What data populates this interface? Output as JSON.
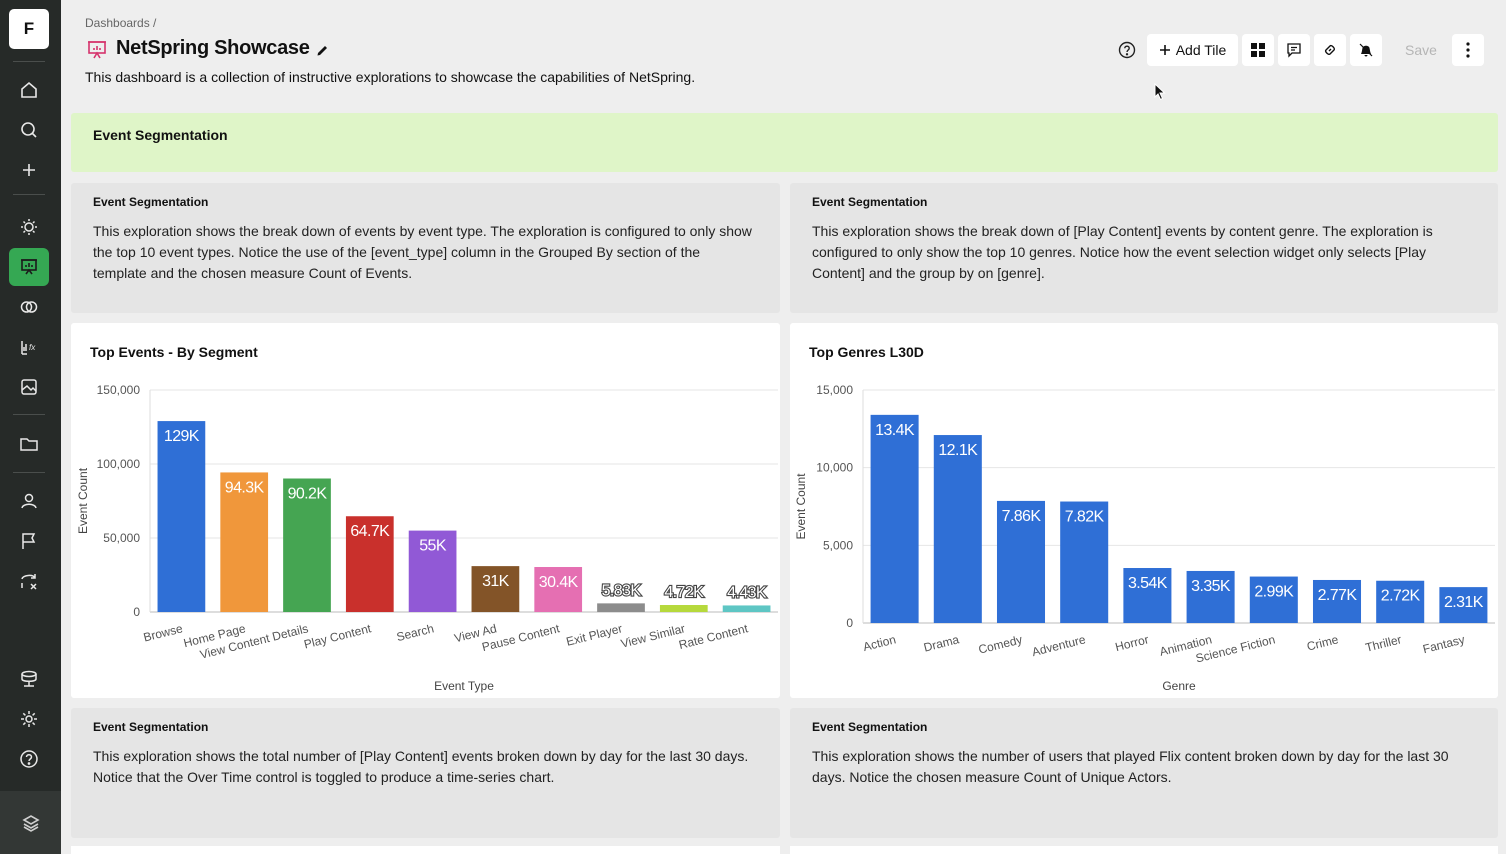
{
  "app": {
    "logo_letter": "F"
  },
  "sidebar": {
    "items": [
      {
        "icon": "home-icon"
      },
      {
        "icon": "search-icon"
      },
      {
        "icon": "plus-icon"
      },
      {
        "icon": "lightbulb-icon"
      },
      {
        "icon": "dashboard-icon",
        "active": true
      },
      {
        "icon": "segments-icon"
      },
      {
        "icon": "metrics-icon"
      },
      {
        "icon": "image-icon"
      },
      {
        "icon": "folder-icon"
      },
      {
        "icon": "user-icon"
      },
      {
        "icon": "flag-icon"
      },
      {
        "icon": "experiment-icon"
      },
      {
        "icon": "database-icon"
      },
      {
        "icon": "gear-icon"
      },
      {
        "icon": "help-icon"
      }
    ],
    "bottom_icon": "stack-logo-icon"
  },
  "header": {
    "breadcrumb": "Dashboards  /",
    "title": "NetSpring Showcase",
    "description": "This dashboard is a collection of instructive explorations to showcase the capabilities of NetSpring.",
    "add_tile_label": "Add Tile",
    "save_label": "Save"
  },
  "banner": {
    "title": "Event Segmentation"
  },
  "text_tiles": [
    {
      "heading": "Event Segmentation",
      "lines": [
        "This exploration shows the break down of events by event type. The exploration is configured to only show",
        "the top 10 event types. Notice the use of the [event_type] column in the Grouped By section of the",
        "template and the chosen measure Count of Events."
      ]
    },
    {
      "heading": "Event Segmentation",
      "lines": [
        "This exploration shows the break down of [Play Content] events by content genre. The exploration is",
        "configured to only show the top 10 genres. Notice how the event selection widget only selects [Play",
        "Content] and the group by on [genre]."
      ]
    },
    {
      "heading": "Event Segmentation",
      "lines": [
        "This exploration shows the total number of [Play Content] events broken down by day for the last 30 days.",
        "Notice that the Over Time control is toggled to produce a time-series chart."
      ]
    },
    {
      "heading": "Event Segmentation",
      "lines": [
        "This exploration shows the number of users that played Flix content broken down by day for the last 30",
        "days. Notice the chosen measure Count of Unique Actors."
      ]
    }
  ],
  "chart_data": [
    {
      "type": "bar",
      "title": "Top Events - By Segment",
      "xlabel": "Event Type",
      "ylabel": "Event Count",
      "ylim": [
        0,
        150000
      ],
      "yticks": [
        "0",
        "50,000",
        "100,000",
        "150,000"
      ],
      "grid": true,
      "categories": [
        "Browse",
        "Home Page",
        "View Content Details",
        "Play Content",
        "Search",
        "View Ad",
        "Pause Content",
        "Exit Player",
        "View Similar",
        "Rate Content"
      ],
      "values": [
        129000,
        94300,
        90200,
        64700,
        55000,
        31000,
        30400,
        5830,
        4720,
        4430
      ],
      "data_labels": [
        "129K",
        "94.3K",
        "90.2K",
        "64.7K",
        "55K",
        "31K",
        "30.4K",
        "5.83K",
        "4.72K",
        "4.43K"
      ],
      "colors": [
        "#2f6fd6",
        "#f0973b",
        "#45a552",
        "#c9302c",
        "#9159d6",
        "#835428",
        "#e56fb2",
        "#8c8c8c",
        "#b6d93c",
        "#5ec6c4"
      ]
    },
    {
      "type": "bar",
      "title": "Top Genres L30D",
      "xlabel": "Genre",
      "ylabel": "Event Count",
      "ylim": [
        0,
        15000
      ],
      "yticks": [
        "0",
        "5,000",
        "10,000",
        "15,000"
      ],
      "grid": true,
      "categories": [
        "Action",
        "Drama",
        "Comedy",
        "Adventure",
        "Horror",
        "Animation",
        "Science Fiction",
        "Crime",
        "Thriller",
        "Fantasy"
      ],
      "values": [
        13400,
        12100,
        7860,
        7820,
        3540,
        3350,
        2990,
        2770,
        2720,
        2310
      ],
      "data_labels": [
        "13.4K",
        "12.1K",
        "7.86K",
        "7.82K",
        "3.54K",
        "3.35K",
        "2.99K",
        "2.77K",
        "2.72K",
        "2.31K"
      ],
      "colors": [
        "#2f6fd6"
      ]
    }
  ]
}
